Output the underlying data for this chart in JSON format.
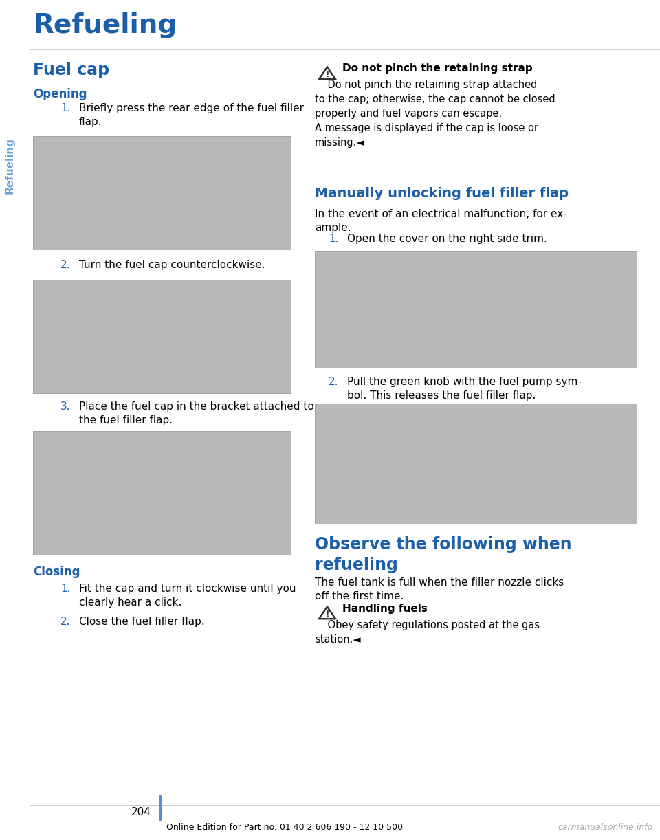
{
  "title": "Refueling",
  "page_bg": "#ffffff",
  "blue_color": "#1a5fa8",
  "text_color": "#000000",
  "sidebar_blue": "#6a9fd8",
  "sidebar_label": "Refueling",
  "section_title": "Fuel cap",
  "subsection_opening": "Opening",
  "opening_steps": [
    "Briefly press the rear edge of the fuel filler\nflap.",
    "Turn the fuel cap counterclockwise.",
    "Place the fuel cap in the bracket attached to\nthe fuel filler flap."
  ],
  "subsection_closing": "Closing",
  "closing_steps": [
    "Fit the cap and turn it clockwise until you\nclearly hear a click.",
    "Close the fuel filler flap."
  ],
  "right_warning1_line1": "Do not pinch the retaining strap",
  "right_warning1_body": "    Do not pinch the retaining strap attached\nto the cap; otherwise, the cap cannot be closed\nproperly and fuel vapors can escape.\nA message is displayed if the cap is loose or\nmissing.◄",
  "right_section2_title": "Manually unlocking fuel filler flap",
  "right_section2_intro": "In the event of an electrical malfunction, for ex-\nample.",
  "right_step1_num": "1.",
  "right_step1_text": "Open the cover on the right side trim.",
  "right_step2_num": "2.",
  "right_step2_text": "Pull the green knob with the fuel pump sym-\nbol. This releases the fuel filler flap.",
  "right_section3_title": "Observe the following when\nrefueling",
  "right_section3_intro": "The fuel tank is full when the filler nozzle clicks\noff the first time.",
  "right_warning2_line1": "Handling fuels",
  "right_warning2_body": "    Obey safety regulations posted at the gas\nstation.◄",
  "page_number": "204",
  "footer_text": "Online Edition for Part no. 01 40 2 606 190 - 12 10 500",
  "watermark": "carmanualsonline.info",
  "divider_color": "#cccccc",
  "footer_line_color": "#5b8fc9",
  "img_color": "#b8b8b8",
  "img_border": "#999999",
  "warn_icon_color": "#333333"
}
